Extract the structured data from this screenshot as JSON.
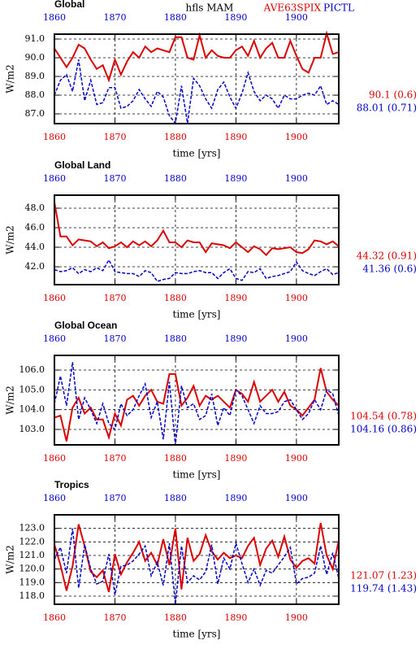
{
  "header": {
    "title": "hfls MAM"
  },
  "chart_data": [
    {
      "type": "line",
      "title": "Global",
      "xlabel": "time [yrs]",
      "ylabel": "W/m2",
      "x": [
        1860,
        1861,
        1862,
        1863,
        1864,
        1865,
        1866,
        1867,
        1868,
        1869,
        1870,
        1871,
        1872,
        1873,
        1874,
        1875,
        1876,
        1877,
        1878,
        1879,
        1880,
        1881,
        1882,
        1883,
        1884,
        1885,
        1886,
        1887,
        1888,
        1889,
        1890,
        1891,
        1892,
        1893,
        1894,
        1895,
        1896,
        1897,
        1898,
        1899,
        1900,
        1901,
        1902,
        1903,
        1904,
        1905,
        1906,
        1907
      ],
      "xlim": [
        1860,
        1907
      ],
      "xticks": [
        1860,
        1870,
        1880,
        1890,
        1900
      ],
      "ylim": [
        86.48,
        91.26
      ],
      "yticks": [
        {
          "value": 87,
          "label": "87.0"
        },
        {
          "value": 88,
          "label": "88.0"
        },
        {
          "value": 89,
          "label": "89.0"
        },
        {
          "value": 90,
          "label": "90.0"
        },
        {
          "value": 91,
          "label": "91.0"
        }
      ],
      "grid": true,
      "series": [
        {
          "name": "AVE63SPIX",
          "color": "#dd0000",
          "values": [
            90.5,
            90.0,
            89.5,
            90.0,
            90.7,
            90.5,
            89.9,
            89.4,
            89.6,
            88.8,
            89.9,
            89.1,
            89.8,
            90.3,
            90.0,
            90.6,
            90.3,
            90.5,
            90.4,
            90.3,
            91.1,
            91.1,
            90.0,
            89.9,
            91.2,
            90.0,
            90.4,
            90.1,
            90.0,
            90.0,
            90.4,
            90.6,
            90.1,
            90.9,
            90.0,
            90.5,
            90.8,
            90.0,
            90.0,
            90.9,
            90.1,
            89.4,
            89.2,
            90.0,
            90.0,
            91.3,
            90.2,
            90.3
          ]
        },
        {
          "name": "PICTL",
          "color": "#0000cc",
          "values": [
            88.0,
            88.8,
            89.1,
            88.2,
            89.9,
            87.7,
            88.8,
            87.5,
            87.6,
            88.4,
            88.4,
            87.3,
            87.4,
            87.7,
            88.3,
            87.8,
            87.4,
            88.2,
            87.9,
            86.9,
            86.5,
            88.5,
            86.5,
            88.9,
            88.5,
            87.8,
            87.3,
            88.3,
            88.7,
            87.9,
            87.3,
            88.1,
            89.2,
            88.2,
            87.7,
            88.0,
            87.8,
            87.3,
            88.0,
            87.8,
            87.8,
            88.0,
            88.1,
            88.0,
            88.5,
            87.5,
            87.7,
            87.5
          ]
        }
      ],
      "annotations": [
        {
          "text": "90.1 (0.6)",
          "color": "#dd0000"
        },
        {
          "text": "88.01 (0.71)",
          "color": "#0000cc"
        }
      ]
    },
    {
      "type": "line",
      "title": "Global Land",
      "xlabel": "time [yrs]",
      "ylabel": "W/m2",
      "x": [
        1860,
        1861,
        1862,
        1863,
        1864,
        1865,
        1866,
        1867,
        1868,
        1869,
        1870,
        1871,
        1872,
        1873,
        1874,
        1875,
        1876,
        1877,
        1878,
        1879,
        1880,
        1881,
        1882,
        1883,
        1884,
        1885,
        1886,
        1887,
        1888,
        1889,
        1890,
        1891,
        1892,
        1893,
        1894,
        1895,
        1896,
        1897,
        1898,
        1899,
        1900,
        1901,
        1902,
        1903,
        1904,
        1905,
        1906,
        1907
      ],
      "xlim": [
        1860,
        1907
      ],
      "xticks": [
        1860,
        1870,
        1880,
        1890,
        1900
      ],
      "ylim": [
        40.17,
        49.33
      ],
      "yticks": [
        {
          "value": 42,
          "label": "42.0"
        },
        {
          "value": 44,
          "label": "44.0"
        },
        {
          "value": 46,
          "label": "46.0"
        },
        {
          "value": 48,
          "label": "48.0"
        }
      ],
      "grid": true,
      "series": [
        {
          "name": "AVE63SPIX",
          "color": "#dd0000",
          "values": [
            48.6,
            45.1,
            45.1,
            44.2,
            44.8,
            44.7,
            44.6,
            44.1,
            44.5,
            43.9,
            44.1,
            44.5,
            44.0,
            44.6,
            44.2,
            44.6,
            44.1,
            44.7,
            45.7,
            44.5,
            44.5,
            44.0,
            44.7,
            44.5,
            44.5,
            43.5,
            44.4,
            44.3,
            44.2,
            43.9,
            44.5,
            44.0,
            43.5,
            44.1,
            43.8,
            43.2,
            43.9,
            43.8,
            43.9,
            44.0,
            43.5,
            43.4,
            43.8,
            44.7,
            44.6,
            44.3,
            44.6,
            44.1
          ]
        },
        {
          "name": "PICTL",
          "color": "#0000cc",
          "values": [
            41.7,
            41.5,
            41.6,
            41.9,
            41.3,
            41.7,
            41.5,
            41.9,
            41.6,
            42.7,
            41.5,
            41.4,
            41.3,
            41.3,
            41.0,
            41.6,
            41.4,
            40.5,
            40.7,
            40.8,
            41.4,
            41.3,
            41.3,
            41.5,
            41.6,
            41.4,
            41.4,
            40.8,
            41.4,
            41.8,
            40.8,
            40.6,
            41.5,
            41.4,
            41.8,
            40.8,
            41.0,
            41.1,
            41.3,
            41.5,
            42.5,
            41.6,
            41.3,
            41.1,
            41.5,
            41.8,
            41.2,
            41.4
          ]
        }
      ],
      "annotations": [
        {
          "text": "44.32 (0.91)",
          "color": "#dd0000"
        },
        {
          "text": "41.36 (0.6)",
          "color": "#0000cc"
        }
      ]
    },
    {
      "type": "line",
      "title": "Global Ocean",
      "xlabel": "time [yrs]",
      "ylabel": "W/m2",
      "x": [
        1860,
        1861,
        1862,
        1863,
        1864,
        1865,
        1866,
        1867,
        1868,
        1869,
        1870,
        1871,
        1872,
        1873,
        1874,
        1875,
        1876,
        1877,
        1878,
        1879,
        1880,
        1881,
        1882,
        1883,
        1884,
        1885,
        1886,
        1887,
        1888,
        1889,
        1890,
        1891,
        1892,
        1893,
        1894,
        1895,
        1896,
        1897,
        1898,
        1899,
        1900,
        1901,
        1902,
        1903,
        1904,
        1905,
        1906,
        1907
      ],
      "xlim": [
        1860,
        1907
      ],
      "xticks": [
        1860,
        1870,
        1880,
        1890,
        1900
      ],
      "ylim": [
        102.22,
        106.74
      ],
      "yticks": [
        {
          "value": 103,
          "label": "103.0"
        },
        {
          "value": 104,
          "label": "104.0"
        },
        {
          "value": 105,
          "label": "105.0"
        },
        {
          "value": 106,
          "label": "106.0"
        }
      ],
      "grid": true,
      "series": [
        {
          "name": "AVE63SPIX",
          "color": "#dd0000",
          "values": [
            103.6,
            103.7,
            102.4,
            104.1,
            104.6,
            103.8,
            104.1,
            103.5,
            103.5,
            102.6,
            103.8,
            103.2,
            104.5,
            104.7,
            104.2,
            104.7,
            105.0,
            104.4,
            104.3,
            105.8,
            105.8,
            104.2,
            104.6,
            105.2,
            104.2,
            104.7,
            104.5,
            104.7,
            104.4,
            104.1,
            105.0,
            104.8,
            104.4,
            105.4,
            104.4,
            104.7,
            105.0,
            104.4,
            104.9,
            104.2,
            104.0,
            103.7,
            104.1,
            104.5,
            106.1,
            104.9,
            104.5,
            104.2
          ]
        },
        {
          "name": "PICTL",
          "color": "#0000cc",
          "values": [
            104.3,
            105.7,
            104.2,
            106.4,
            103.5,
            104.6,
            104.0,
            103.3,
            104.3,
            103.3,
            103.0,
            104.3,
            103.7,
            104.0,
            104.7,
            105.3,
            103.6,
            104.4,
            102.5,
            105.4,
            102.2,
            105.2,
            104.1,
            104.3,
            103.5,
            103.7,
            104.8,
            103.2,
            104.1,
            103.7,
            105.0,
            104.7,
            104.0,
            103.3,
            104.2,
            103.8,
            103.8,
            103.9,
            104.4,
            104.5,
            104.0,
            103.5,
            103.8,
            104.5,
            104.0,
            105.0,
            104.8,
            103.7
          ]
        }
      ],
      "annotations": [
        {
          "text": "104.54 (0.78)",
          "color": "#dd0000"
        },
        {
          "text": "104.16 (0.86)",
          "color": "#0000cc"
        }
      ]
    },
    {
      "type": "line",
      "title": "Tropics",
      "xlabel": "time [yrs]",
      "ylabel": "W/m2",
      "x": [
        1860,
        1861,
        1862,
        1863,
        1864,
        1865,
        1866,
        1867,
        1868,
        1869,
        1870,
        1871,
        1872,
        1873,
        1874,
        1875,
        1876,
        1877,
        1878,
        1879,
        1880,
        1881,
        1882,
        1883,
        1884,
        1885,
        1886,
        1887,
        1888,
        1889,
        1890,
        1891,
        1892,
        1893,
        1894,
        1895,
        1896,
        1897,
        1898,
        1899,
        1900,
        1901,
        1902,
        1903,
        1904,
        1905,
        1906,
        1907
      ],
      "xlim": [
        1860,
        1907
      ],
      "xticks": [
        1860,
        1870,
        1880,
        1890,
        1900
      ],
      "ylim": [
        117.4,
        124.0
      ],
      "yticks": [
        {
          "value": 118,
          "label": "118.0"
        },
        {
          "value": 119,
          "label": "119.0"
        },
        {
          "value": 120,
          "label": "120.0"
        },
        {
          "value": 121,
          "label": "121.0"
        },
        {
          "value": 122,
          "label": "122.0"
        },
        {
          "value": 123,
          "label": "123.0"
        }
      ],
      "grid": true,
      "series": [
        {
          "name": "AVE63SPIX",
          "color": "#dd0000",
          "values": [
            121.8,
            120.3,
            118.4,
            120.2,
            123.3,
            121.7,
            119.8,
            119.4,
            119.9,
            118.3,
            121.1,
            119.6,
            120.5,
            121.2,
            122.0,
            120.6,
            121.2,
            120.3,
            122.2,
            120.3,
            123.0,
            118.5,
            122.3,
            120.6,
            121.1,
            122.5,
            121.3,
            120.7,
            121.2,
            120.8,
            121.0,
            120.8,
            121.7,
            122.3,
            120.3,
            121.5,
            122.1,
            120.9,
            122.4,
            120.7,
            120.1,
            120.6,
            120.8,
            120.4,
            123.4,
            121.0,
            120.0,
            122.1
          ]
        },
        {
          "name": "PICTL",
          "color": "#0000cc",
          "values": [
            120.7,
            121.6,
            119.7,
            123.0,
            118.6,
            121.8,
            120.0,
            118.9,
            119.1,
            121.1,
            118.1,
            120.2,
            120.3,
            120.6,
            121.1,
            121.7,
            119.5,
            120.5,
            118.8,
            121.9,
            117.4,
            121.7,
            119.0,
            119.5,
            119.2,
            119.8,
            121.8,
            118.9,
            120.8,
            120.0,
            121.9,
            120.4,
            119.0,
            120.0,
            118.8,
            119.9,
            119.7,
            120.3,
            120.9,
            121.6,
            118.9,
            119.3,
            119.4,
            119.7,
            121.7,
            119.6,
            121.2,
            119.3
          ]
        }
      ],
      "annotations": [
        {
          "text": "121.07 (1.23)",
          "color": "#dd0000"
        },
        {
          "text": "119.74 (1.43)",
          "color": "#0000cc"
        }
      ]
    }
  ]
}
